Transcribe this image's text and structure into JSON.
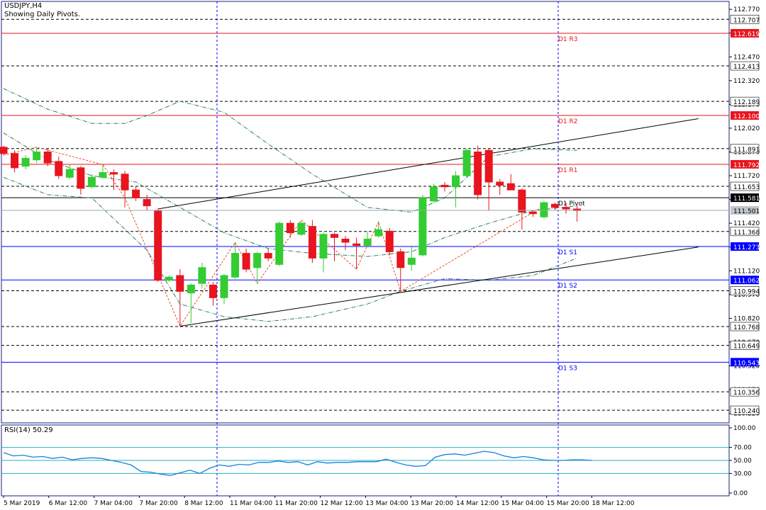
{
  "header": {
    "symbol": "USDJPY,H4",
    "subtitle": "Showing Daily Pivots."
  },
  "rsi_panel": {
    "title": "RSI(14) 50.29"
  },
  "colors": {
    "bull": "#33cc33",
    "bear": "#e8141e",
    "pivot_red": "#e8141e",
    "pivot_blue": "#0000ff",
    "grid_dash": "#000000",
    "ma_line": "#2f7f5f",
    "zigzag": "#e8502a",
    "rsi_line": "#1c7fd6",
    "rsi_level": "#20b0c8",
    "frame": "#1a237e"
  },
  "chart_data": [
    {
      "type": "candlestick",
      "title": "USDJPY,H4",
      "subtitle": "Showing Daily Pivots.",
      "ylim": [
        110.16,
        112.82
      ],
      "y_tick_labels": [
        "112.770",
        "112.620",
        "112.470",
        "112.320",
        "112.170",
        "112.020",
        "111.870",
        "111.720",
        "111.570",
        "111.420",
        "111.270",
        "111.120",
        "110.970",
        "110.820",
        "110.670",
        "110.520",
        "110.370",
        "110.220"
      ],
      "x_tick_labels": [
        "5 Mar 2019",
        "6 Mar 12:00",
        "7 Mar 04:00",
        "7 Mar 20:00",
        "8 Mar 12:00",
        "11 Mar 04:00",
        "11 Mar 20:00",
        "12 Mar 12:00",
        "13 Mar 04:00",
        "13 Mar 20:00",
        "14 Mar 12:00",
        "15 Mar 04:00",
        "15 Mar 20:00",
        "18 Mar 12:00"
      ],
      "candles": [
        {
          "o": 111.9,
          "h": 111.91,
          "l": 111.85,
          "c": 111.86
        },
        {
          "o": 111.86,
          "h": 111.88,
          "l": 111.74,
          "c": 111.77
        },
        {
          "o": 111.78,
          "h": 111.85,
          "l": 111.76,
          "c": 111.83
        },
        {
          "o": 111.82,
          "h": 111.9,
          "l": 111.8,
          "c": 111.87
        },
        {
          "o": 111.87,
          "h": 111.89,
          "l": 111.78,
          "c": 111.8
        },
        {
          "o": 111.81,
          "h": 111.84,
          "l": 111.7,
          "c": 111.72
        },
        {
          "o": 111.71,
          "h": 111.79,
          "l": 111.7,
          "c": 111.76
        },
        {
          "o": 111.77,
          "h": 111.78,
          "l": 111.6,
          "c": 111.64
        },
        {
          "o": 111.65,
          "h": 111.73,
          "l": 111.64,
          "c": 111.71
        },
        {
          "o": 111.71,
          "h": 111.79,
          "l": 111.7,
          "c": 111.74
        },
        {
          "o": 111.74,
          "h": 111.76,
          "l": 111.63,
          "c": 111.73
        },
        {
          "o": 111.73,
          "h": 111.75,
          "l": 111.52,
          "c": 111.63
        },
        {
          "o": 111.63,
          "h": 111.65,
          "l": 111.56,
          "c": 111.58
        },
        {
          "o": 111.57,
          "h": 111.6,
          "l": 111.5,
          "c": 111.53
        },
        {
          "o": 111.5,
          "h": 111.51,
          "l": 111.05,
          "c": 111.06
        },
        {
          "o": 111.06,
          "h": 111.09,
          "l": 111.05,
          "c": 111.08
        },
        {
          "o": 111.09,
          "h": 111.13,
          "l": 110.77,
          "c": 110.99
        },
        {
          "o": 110.98,
          "h": 111.04,
          "l": 110.79,
          "c": 111.03
        },
        {
          "o": 111.04,
          "h": 111.17,
          "l": 111.01,
          "c": 111.14
        },
        {
          "o": 111.03,
          "h": 111.05,
          "l": 110.9,
          "c": 110.95
        },
        {
          "o": 110.95,
          "h": 111.1,
          "l": 110.91,
          "c": 111.09
        },
        {
          "o": 111.08,
          "h": 111.3,
          "l": 111.07,
          "c": 111.23
        },
        {
          "o": 111.23,
          "h": 111.26,
          "l": 111.11,
          "c": 111.13
        },
        {
          "o": 111.14,
          "h": 111.24,
          "l": 111.04,
          "c": 111.23
        },
        {
          "o": 111.23,
          "h": 111.26,
          "l": 111.18,
          "c": 111.2
        },
        {
          "o": 111.16,
          "h": 111.43,
          "l": 111.15,
          "c": 111.42
        },
        {
          "o": 111.42,
          "h": 111.44,
          "l": 111.33,
          "c": 111.36
        },
        {
          "o": 111.35,
          "h": 111.43,
          "l": 111.34,
          "c": 111.42
        },
        {
          "o": 111.4,
          "h": 111.44,
          "l": 111.17,
          "c": 111.2
        },
        {
          "o": 111.2,
          "h": 111.36,
          "l": 111.11,
          "c": 111.35
        },
        {
          "o": 111.35,
          "h": 111.36,
          "l": 111.18,
          "c": 111.33
        },
        {
          "o": 111.32,
          "h": 111.34,
          "l": 111.25,
          "c": 111.3
        },
        {
          "o": 111.29,
          "h": 111.33,
          "l": 111.13,
          "c": 111.28
        },
        {
          "o": 111.28,
          "h": 111.37,
          "l": 111.28,
          "c": 111.32
        },
        {
          "o": 111.34,
          "h": 111.43,
          "l": 111.33,
          "c": 111.38
        },
        {
          "o": 111.37,
          "h": 111.39,
          "l": 111.22,
          "c": 111.24
        },
        {
          "o": 111.24,
          "h": 111.26,
          "l": 110.99,
          "c": 111.14
        },
        {
          "o": 111.16,
          "h": 111.27,
          "l": 111.12,
          "c": 111.2
        },
        {
          "o": 111.22,
          "h": 111.6,
          "l": 111.21,
          "c": 111.58
        },
        {
          "o": 111.56,
          "h": 111.67,
          "l": 111.55,
          "c": 111.65
        },
        {
          "o": 111.66,
          "h": 111.68,
          "l": 111.62,
          "c": 111.65
        },
        {
          "o": 111.65,
          "h": 111.75,
          "l": 111.52,
          "c": 111.72
        },
        {
          "o": 111.72,
          "h": 111.89,
          "l": 111.71,
          "c": 111.88
        },
        {
          "o": 111.87,
          "h": 111.91,
          "l": 111.57,
          "c": 111.6
        },
        {
          "o": 111.88,
          "h": 111.89,
          "l": 111.5,
          "c": 111.68
        },
        {
          "o": 111.68,
          "h": 111.7,
          "l": 111.6,
          "c": 111.66
        },
        {
          "o": 111.67,
          "h": 111.73,
          "l": 111.63,
          "c": 111.63
        },
        {
          "o": 111.63,
          "h": 111.64,
          "l": 111.38,
          "c": 111.49
        },
        {
          "o": 111.49,
          "h": 111.5,
          "l": 111.46,
          "c": 111.48
        },
        {
          "o": 111.46,
          "h": 111.56,
          "l": 111.45,
          "c": 111.55
        },
        {
          "o": 111.54,
          "h": 111.55,
          "l": 111.5,
          "c": 111.52
        },
        {
          "o": 111.52,
          "h": 111.55,
          "l": 111.48,
          "c": 111.51
        },
        {
          "o": 111.51,
          "h": 111.54,
          "l": 111.43,
          "c": 111.5
        }
      ],
      "pivots": [
        {
          "label": "D1 R3",
          "value": 112.619,
          "color": "red"
        },
        {
          "label": "D1 R2",
          "value": 112.1,
          "color": "red"
        },
        {
          "label": "D1 R1",
          "value": 111.792,
          "color": "red"
        },
        {
          "label": "D1 Pivot",
          "value": 111.581,
          "color": "black"
        },
        {
          "label": "D1 S1",
          "value": 111.273,
          "color": "blue"
        },
        {
          "label": "D1 S2",
          "value": 111.062,
          "color": "blue"
        },
        {
          "label": "D1 S3",
          "value": 110.543,
          "color": "blue"
        }
      ],
      "dashed_levels": [
        112.707,
        112.413,
        112.189,
        111.891,
        111.653,
        111.368,
        110.994,
        110.768,
        110.649,
        110.356,
        110.24
      ],
      "current_price": 111.501,
      "channel_lines": [
        {
          "x": [
            14,
            63
          ],
          "y": [
            111.51,
            112.08
          ]
        },
        {
          "x": [
            16,
            63
          ],
          "y": [
            110.77,
            111.27
          ]
        }
      ],
      "zigzag": {
        "x": [
          0,
          3,
          9,
          11,
          16,
          21,
          23,
          27,
          32,
          34,
          36,
          49
        ],
        "y": [
          111.85,
          111.9,
          111.79,
          111.58,
          110.77,
          111.3,
          111.04,
          111.44,
          111.13,
          111.43,
          110.99,
          111.53
        ]
      },
      "ma_series": [
        {
          "x": [
            0,
            4,
            8,
            12,
            15,
            20,
            24,
            28,
            33,
            37,
            40,
            44,
            48,
            52
          ],
          "y": [
            111.99,
            111.82,
            111.72,
            111.68,
            111.56,
            111.36,
            111.26,
            111.23,
            111.21,
            111.24,
            111.33,
            111.42,
            111.5,
            111.53
          ]
        },
        {
          "x": [
            0,
            4,
            8,
            11,
            13,
            16,
            20,
            24,
            28,
            33,
            37,
            40,
            44,
            48,
            52
          ],
          "y": [
            112.27,
            112.14,
            112.05,
            112.05,
            112.1,
            112.19,
            112.12,
            111.92,
            111.73,
            111.52,
            111.49,
            111.58,
            111.84,
            111.89,
            111.88
          ]
        },
        {
          "x": [
            0,
            4,
            8,
            13,
            16,
            20,
            24,
            28,
            33,
            36,
            40,
            44,
            48,
            52
          ],
          "y": [
            111.71,
            111.6,
            111.58,
            111.25,
            110.91,
            110.83,
            110.8,
            110.83,
            110.91,
            110.99,
            111.07,
            111.06,
            111.09,
            111.2
          ]
        }
      ]
    },
    {
      "type": "line",
      "title": "RSI(14) 50.29",
      "ylim": [
        0,
        100
      ],
      "y_tick_labels": [
        "100.00",
        "70.00",
        "50.00",
        "30.00",
        "0.00"
      ],
      "levels": [
        70,
        50,
        30
      ],
      "series": [
        {
          "values": [
            62,
            57,
            58,
            55,
            56,
            53,
            55,
            51,
            53,
            54,
            53,
            50,
            47,
            43,
            33,
            32,
            29,
            27,
            31,
            35,
            30,
            38,
            43,
            41,
            44,
            43,
            47,
            47,
            49,
            47,
            48,
            43,
            48,
            46,
            47,
            47,
            48,
            48,
            48,
            52,
            47,
            43,
            41,
            42,
            55,
            59,
            60,
            58,
            61,
            64,
            62,
            57,
            54,
            56,
            54,
            51,
            50,
            50,
            51,
            51,
            50
          ]
        }
      ]
    }
  ]
}
